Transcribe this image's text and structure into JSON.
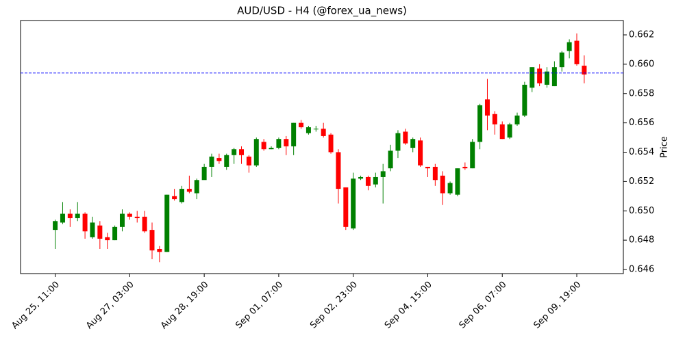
{
  "chart_data": {
    "type": "candlestick",
    "title": "AUD/USD - H4 (@forex_ua_news)",
    "ylabel": "Price",
    "categories": [
      "Aug 25, 11:00",
      null,
      null,
      null,
      null,
      null,
      null,
      null,
      null,
      null,
      "Aug 27, 03:00",
      null,
      null,
      null,
      null,
      null,
      null,
      null,
      null,
      null,
      "Aug 28, 19:00",
      null,
      null,
      null,
      null,
      null,
      null,
      null,
      null,
      null,
      "Sep 01, 07:00",
      null,
      null,
      null,
      null,
      null,
      null,
      null,
      null,
      null,
      "Sep 02, 23:00",
      null,
      null,
      null,
      null,
      null,
      null,
      null,
      null,
      null,
      "Sep 04, 15:00",
      null,
      null,
      null,
      null,
      null,
      null,
      null,
      null,
      null,
      "Sep 06, 07:00",
      null,
      null,
      null,
      null,
      null,
      null,
      null,
      null,
      null,
      "Sep 09, 19:00",
      null
    ],
    "open": [
      0.6487,
      0.6492,
      0.6498,
      0.6495,
      0.6498,
      0.6482,
      0.649,
      0.6482,
      0.648,
      0.6489,
      0.6498,
      0.6496,
      0.6496,
      0.6487,
      0.6474,
      0.6472,
      0.651,
      0.6506,
      0.6515,
      0.6512,
      0.6521,
      0.653,
      0.6536,
      0.653,
      0.6538,
      0.6542,
      0.6537,
      0.6531,
      0.6547,
      0.6542,
      0.6543,
      0.6549,
      0.6544,
      0.656,
      0.6553,
      0.6556,
      0.6556,
      0.6552,
      0.654,
      0.6516,
      0.6488,
      0.6522,
      0.6523,
      0.6518,
      0.6523,
      0.6529,
      0.6541,
      0.6554,
      0.6543,
      0.6548,
      0.653,
      0.653,
      0.6524,
      0.6512,
      0.6511,
      0.653,
      0.6529,
      0.6547,
      0.6576,
      0.6566,
      0.6559,
      0.655,
      0.6559,
      0.6565,
      0.6584,
      0.6597,
      0.6586,
      0.6585,
      0.6598,
      0.6609,
      0.6616,
      0.6599
    ],
    "high": [
      0.6494,
      0.6506,
      0.6501,
      0.6506,
      0.6499,
      0.6496,
      0.6493,
      0.6485,
      0.649,
      0.6501,
      0.6499,
      0.65,
      0.65,
      0.6492,
      0.6476,
      0.6511,
      0.6515,
      0.6517,
      0.6524,
      0.6522,
      0.6532,
      0.6539,
      0.6539,
      0.6539,
      0.6543,
      0.6544,
      0.6538,
      0.655,
      0.6549,
      0.6544,
      0.655,
      0.6551,
      0.656,
      0.6562,
      0.6558,
      0.6558,
      0.656,
      0.6553,
      0.6542,
      0.6516,
      0.6526,
      0.6524,
      0.6524,
      0.6526,
      0.6532,
      0.6545,
      0.6555,
      0.6556,
      0.655,
      0.655,
      0.653,
      0.6532,
      0.6527,
      0.652,
      0.6529,
      0.6533,
      0.6549,
      0.6573,
      0.659,
      0.6568,
      0.6561,
      0.656,
      0.6567,
      0.6588,
      0.6598,
      0.66,
      0.6598,
      0.6602,
      0.6609,
      0.6617,
      0.6621,
      0.6606
    ],
    "low": [
      0.6474,
      0.6491,
      0.6489,
      0.6493,
      0.6481,
      0.6481,
      0.6474,
      0.6474,
      0.648,
      0.6486,
      0.6494,
      0.6492,
      0.6485,
      0.6467,
      0.6465,
      0.6472,
      0.6507,
      0.6505,
      0.6512,
      0.6508,
      0.6522,
      0.6523,
      0.6532,
      0.6528,
      0.6532,
      0.6532,
      0.6526,
      0.653,
      0.6541,
      0.6542,
      0.6542,
      0.6538,
      0.6538,
      0.6556,
      0.6552,
      0.6554,
      0.655,
      0.6539,
      0.6505,
      0.6487,
      0.6487,
      0.6521,
      0.6514,
      0.6516,
      0.6505,
      0.6527,
      0.6536,
      0.6545,
      0.654,
      0.653,
      0.6523,
      0.6517,
      0.6504,
      0.6511,
      0.651,
      0.6528,
      0.6529,
      0.6542,
      0.6555,
      0.6552,
      0.6549,
      0.6549,
      0.6558,
      0.6564,
      0.6581,
      0.6585,
      0.6584,
      0.6585,
      0.6595,
      0.6604,
      0.6599,
      0.6587
    ],
    "close": [
      0.6493,
      0.6498,
      0.6495,
      0.6498,
      0.6486,
      0.6492,
      0.6481,
      0.648,
      0.6489,
      0.6498,
      0.6496,
      0.6495,
      0.6486,
      0.6473,
      0.6472,
      0.6511,
      0.6508,
      0.6515,
      0.6513,
      0.6521,
      0.653,
      0.6537,
      0.6534,
      0.6538,
      0.6542,
      0.6538,
      0.6531,
      0.6549,
      0.6542,
      0.6543,
      0.6549,
      0.6544,
      0.656,
      0.6557,
      0.6557,
      0.6556,
      0.6551,
      0.654,
      0.6515,
      0.6489,
      0.6522,
      0.6523,
      0.6517,
      0.6523,
      0.6527,
      0.6541,
      0.6553,
      0.6546,
      0.6549,
      0.6531,
      0.6529,
      0.6521,
      0.6512,
      0.6519,
      0.6529,
      0.6529,
      0.6547,
      0.6572,
      0.6565,
      0.6559,
      0.6549,
      0.6559,
      0.6565,
      0.6586,
      0.6598,
      0.6587,
      0.6595,
      0.6598,
      0.6608,
      0.6615,
      0.66,
      0.6593
    ],
    "up_color": "green",
    "down_color": "red",
    "hline": {
      "value": 0.6594,
      "color": "blue",
      "style": "dashed"
    },
    "ylim": [
      0.64572,
      0.66298
    ],
    "yticks": [
      0.646,
      0.648,
      0.65,
      0.652,
      0.654,
      0.656,
      0.658,
      0.66,
      0.662
    ],
    "ytick_labels": [
      "0.646",
      "0.648",
      "0.650",
      "0.652",
      "0.654",
      "0.656",
      "0.658",
      "0.660",
      "0.662"
    ]
  }
}
